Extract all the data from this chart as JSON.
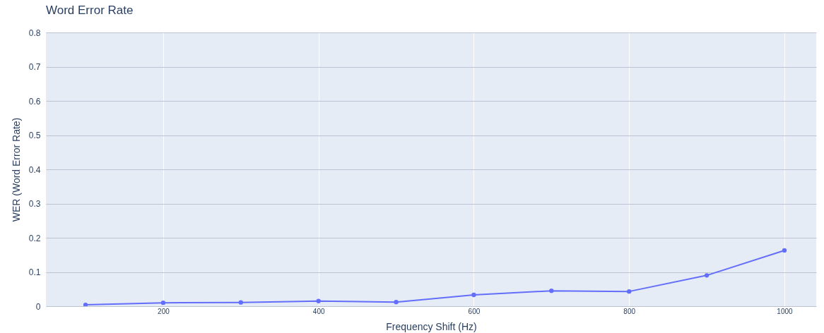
{
  "chart_data": {
    "type": "line",
    "title": "Word Error Rate",
    "xlabel": "Frequency Shift (Hz)",
    "ylabel": "WER (Word Error Rate)",
    "x": [
      100,
      200,
      300,
      400,
      500,
      600,
      700,
      800,
      900,
      1000
    ],
    "series": [
      {
        "color": "#636efa",
        "values": [
          0.004,
          0.01,
          0.011,
          0.015,
          0.012,
          0.033,
          0.045,
          0.043,
          0.09,
          0.163
        ]
      }
    ],
    "xlim": [
      49,
      1041
    ],
    "ylim": [
      0,
      0.8
    ],
    "xticks": [
      200,
      400,
      600,
      800,
      1000
    ],
    "yticks": [
      0,
      0.1,
      0.2,
      0.3,
      0.4,
      0.5,
      0.6,
      0.7,
      0.8
    ],
    "grid": true,
    "marker": "circle",
    "line_style": "solid"
  }
}
